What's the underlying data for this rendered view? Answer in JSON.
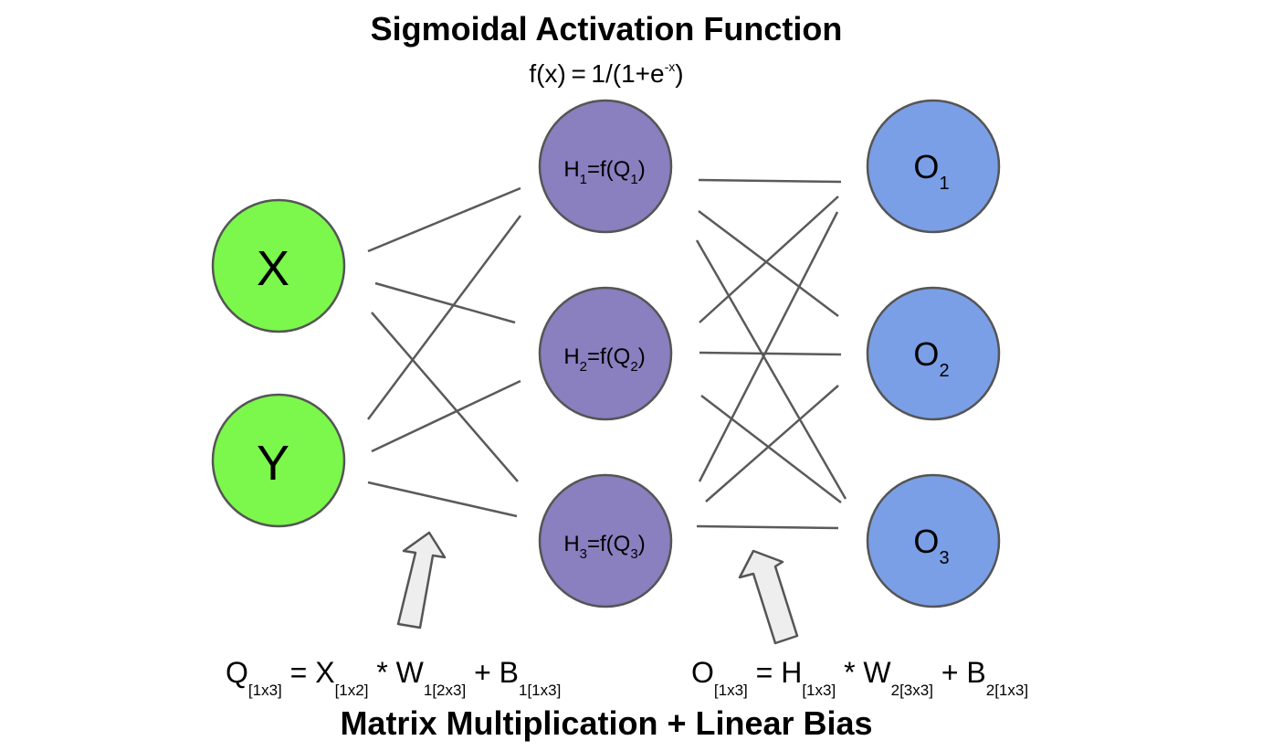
{
  "title": "Sigmoidal Activation Function",
  "activation_formula": {
    "base": "f(x) = 1/(1+e",
    "exponent": "-x",
    "close": ")"
  },
  "input_nodes": [
    {
      "label": "X",
      "color": "#7cf74c"
    },
    {
      "label": "Y",
      "color": "#7cf74c"
    }
  ],
  "hidden_nodes": [
    {
      "prefix": "H",
      "index": "1",
      "mid": "=f(Q",
      "arg_index": "1",
      "close": ")",
      "color": "#8a7fbf"
    },
    {
      "prefix": "H",
      "index": "2",
      "mid": "=f(Q",
      "arg_index": "2",
      "close": ")",
      "color": "#8a7fbf"
    },
    {
      "prefix": "H",
      "index": "3",
      "mid": "=f(Q",
      "arg_index": "3",
      "close": ")",
      "color": "#8a7fbf"
    }
  ],
  "output_nodes": [
    {
      "prefix": "O",
      "index": "1",
      "color": "#7a9fe6"
    },
    {
      "prefix": "O",
      "index": "2",
      "color": "#7a9fe6"
    },
    {
      "prefix": "O",
      "index": "3",
      "color": "#7a9fe6"
    }
  ],
  "equation_hidden": {
    "q": "Q",
    "q_sub": "[1x3]",
    "eq": " = X",
    "x_sub": "[1x2]",
    "times": " * W",
    "w_sub": "1[2x3]",
    "plus": " + B",
    "b_sub": "1[1x3]"
  },
  "equation_output": {
    "o": "O",
    "o_sub": "[1x3]",
    "eq": " = H",
    "h_sub": "[1x3]",
    "times": " * W",
    "w_sub": "2[3x3]",
    "plus": " + B",
    "b_sub": "2[1x3]"
  },
  "bottom_title": "Matrix Multiplication + Linear Bias",
  "colors": {
    "node_stroke": "#555555",
    "edge": "#5a5a5a",
    "arrow_fill": "#eeeeee",
    "arrow_stroke": "#555555"
  }
}
